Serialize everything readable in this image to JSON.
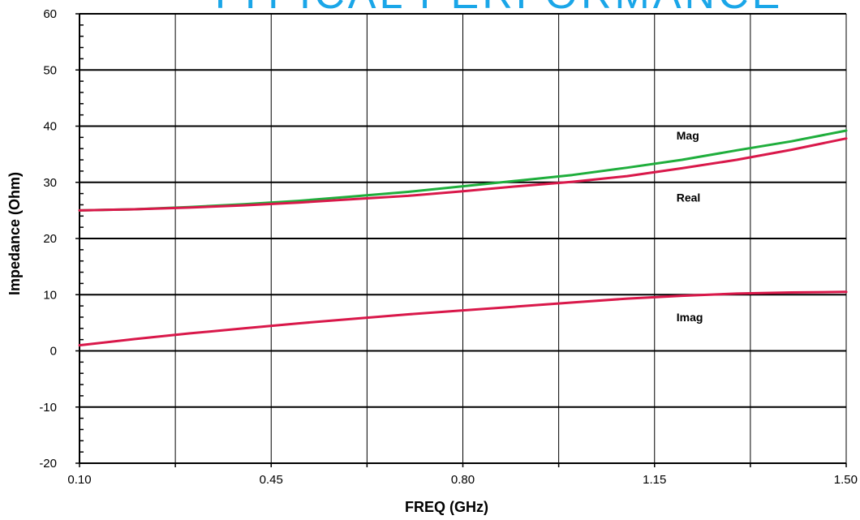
{
  "chart_data": {
    "type": "line",
    "title": "TYPICAL PERFORMANCE",
    "xlabel": "FREQ (GHz)",
    "ylabel": "Impedance (Ohm)",
    "xlim": [
      0.1,
      1.5
    ],
    "ylim": [
      -20,
      60
    ],
    "xticks": [
      "0.10",
      "0.45",
      "0.80",
      "1.15",
      "1.50"
    ],
    "yticks": [
      "-20",
      "-10",
      "0",
      "10",
      "20",
      "30",
      "40",
      "50",
      "60"
    ],
    "grid": true,
    "title_color": "#1aa6e8",
    "series": [
      {
        "name": "Mag",
        "color": "#1fae3c",
        "x": [
          0.1,
          0.2,
          0.3,
          0.4,
          0.5,
          0.6,
          0.7,
          0.8,
          0.9,
          1.0,
          1.1,
          1.2,
          1.3,
          1.4,
          1.5
        ],
        "y": [
          25.0,
          25.2,
          25.6,
          26.1,
          26.7,
          27.5,
          28.3,
          29.3,
          30.3,
          31.3,
          32.6,
          34.0,
          35.7,
          37.3,
          39.2
        ]
      },
      {
        "name": "Real",
        "color": "#d9184a",
        "x": [
          0.1,
          0.2,
          0.3,
          0.4,
          0.5,
          0.6,
          0.7,
          0.8,
          0.9,
          1.0,
          1.1,
          1.2,
          1.3,
          1.4,
          1.5
        ],
        "y": [
          25.0,
          25.2,
          25.5,
          25.9,
          26.4,
          27.0,
          27.6,
          28.4,
          29.3,
          30.1,
          31.1,
          32.5,
          34.0,
          35.8,
          37.8
        ]
      },
      {
        "name": "Imag",
        "color": "#d9184a",
        "x": [
          0.1,
          0.2,
          0.3,
          0.4,
          0.5,
          0.6,
          0.7,
          0.8,
          0.9,
          1.0,
          1.1,
          1.2,
          1.3,
          1.4,
          1.5
        ],
        "y": [
          1.0,
          2.1,
          3.1,
          4.0,
          4.9,
          5.7,
          6.5,
          7.2,
          7.9,
          8.6,
          9.3,
          9.8,
          10.2,
          10.4,
          10.5
        ]
      }
    ],
    "annotations": [
      {
        "text": "Mag",
        "x": 1.19,
        "y": 37.6
      },
      {
        "text": "Real",
        "x": 1.19,
        "y": 26.6
      },
      {
        "text": "Imag",
        "x": 1.19,
        "y": 5.3
      }
    ]
  }
}
